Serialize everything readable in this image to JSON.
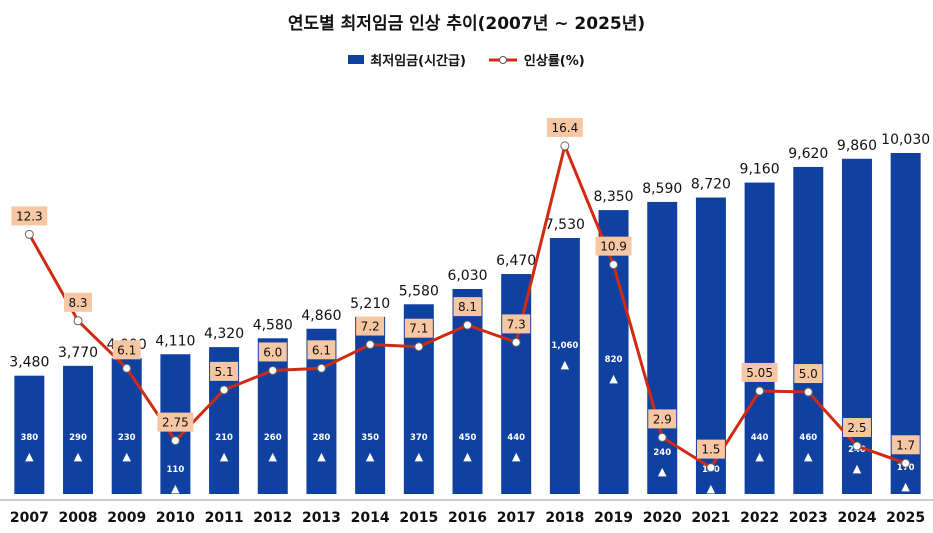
{
  "chart_data": {
    "type": "bar+line",
    "title": "연도별 최저임금 인상 추이(2007년 ~ 2025년)",
    "legend": [
      {
        "name": "최저임금(시간급)",
        "kind": "bar"
      },
      {
        "name": "인상률(%)",
        "kind": "line"
      }
    ],
    "categories": [
      "2007",
      "2008",
      "2009",
      "2010",
      "2011",
      "2012",
      "2013",
      "2014",
      "2015",
      "2016",
      "2017",
      "2018",
      "2019",
      "2020",
      "2021",
      "2022",
      "2023",
      "2024",
      "2025"
    ],
    "series": [
      {
        "name": "최저임금(시간급)",
        "type": "bar",
        "values": [
          3480,
          3770,
          4000,
          4110,
          4320,
          4580,
          4860,
          5210,
          5580,
          6030,
          6470,
          7530,
          8350,
          8590,
          8720,
          9160,
          9620,
          9860,
          10030
        ],
        "labels": [
          "3,480",
          "3,770",
          "4,000",
          "4,110",
          "4,320",
          "4,580",
          "4,860",
          "5,210",
          "5,580",
          "6,030",
          "6,470",
          "7,530",
          "8,350",
          "8,590",
          "8,720",
          "9,160",
          "9,620",
          "9,860",
          "10,030"
        ],
        "increase": [
          "380",
          "290",
          "230",
          "110",
          "210",
          "260",
          "280",
          "350",
          "370",
          "450",
          "440",
          "1,060",
          "820",
          "240",
          "130",
          "440",
          "460",
          "240",
          "170"
        ],
        "increase_marker": "▲"
      },
      {
        "name": "인상률(%)",
        "type": "line",
        "values": [
          12.3,
          8.3,
          6.1,
          2.75,
          5.1,
          6.0,
          6.1,
          7.2,
          7.1,
          8.1,
          7.3,
          16.4,
          10.9,
          2.9,
          1.5,
          5.05,
          5.0,
          2.5,
          1.7
        ],
        "labels": [
          "12.3",
          "8.3",
          "6.1",
          "2.75",
          "5.1",
          "6.0",
          "6.1",
          "7.2",
          "7.1",
          "8.1",
          "7.3",
          "16.4",
          "10.9",
          "2.9",
          "1.5",
          "5.05",
          "5.0",
          "2.5",
          "1.7"
        ]
      }
    ],
    "ylim_bar": [
      0,
      10500
    ],
    "ylim_rate": [
      0,
      22
    ],
    "colors": {
      "bar": "#1041a0",
      "line": "#d12a12",
      "label_box": "#f7c7a3",
      "marker_fill": "#ffffff",
      "bar_text": "#ffffff",
      "text": "#111111"
    }
  }
}
